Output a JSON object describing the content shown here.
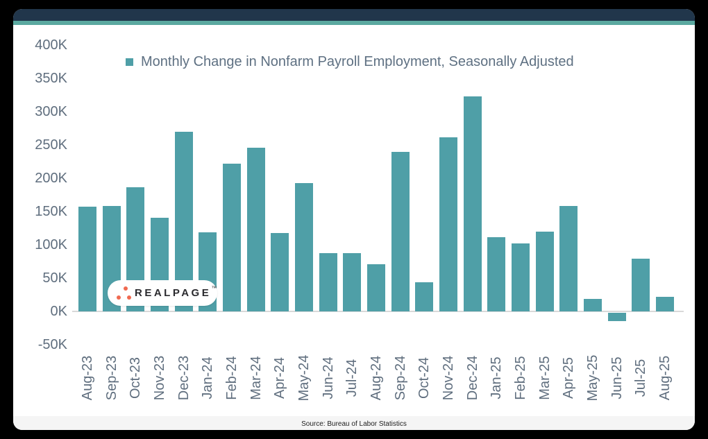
{
  "colors": {
    "page_background": "#000000",
    "card_background": "#FFFFFF",
    "header_bar": "#21364B",
    "accent_line": "#5BA9A0",
    "bar": "#4F9FA7",
    "zero_gridline": "#D9D9D9",
    "axis_text": "#5F6E7E",
    "legend_text": "#5E7082",
    "source_strip_background": "#F5F5F5",
    "source_text": "#1C1C1C",
    "logo_dot": "#F06A51",
    "logo_text": "#2A2A2E"
  },
  "logo": {
    "text": "REALPAGE",
    "trademark": "™"
  },
  "source": {
    "text": "Source: Bureau of Labor Statistics"
  },
  "chart_data": {
    "type": "bar",
    "title": "",
    "series_name": "Monthly Change in Nonfarm Payroll Employment, Seasonally Adjusted",
    "legend_position": "top",
    "unit": "K (thousands of jobs)",
    "categories": [
      "Aug-23",
      "Sep-23",
      "Oct-23",
      "Nov-23",
      "Dec-23",
      "Jan-24",
      "Feb-24",
      "Mar-24",
      "Apr-24",
      "May-24",
      "Jun-24",
      "Jul-24",
      "Aug-24",
      "Sep-24",
      "Oct-24",
      "Nov-24",
      "Dec-24",
      "Jan-25",
      "Feb-25",
      "Mar-25",
      "Apr-25",
      "May-25",
      "Jun-25",
      "Jul-25",
      "Aug-25"
    ],
    "values": [
      157,
      158,
      186,
      141,
      270,
      119,
      222,
      246,
      118,
      193,
      87,
      88,
      71,
      240,
      44,
      261,
      323,
      111,
      102,
      120,
      158,
      19,
      -13,
      79,
      22
    ],
    "ylim": [
      -50,
      400
    ],
    "ytick_step": 50,
    "ytick_values": [
      400,
      350,
      300,
      250,
      200,
      150,
      100,
      50,
      0,
      -50
    ],
    "ytick_labels": [
      "400K",
      "350K",
      "300K",
      "250K",
      "200K",
      "150K",
      "100K",
      "50K",
      "0K",
      "-50K"
    ],
    "grid": "zero-baseline-only"
  }
}
